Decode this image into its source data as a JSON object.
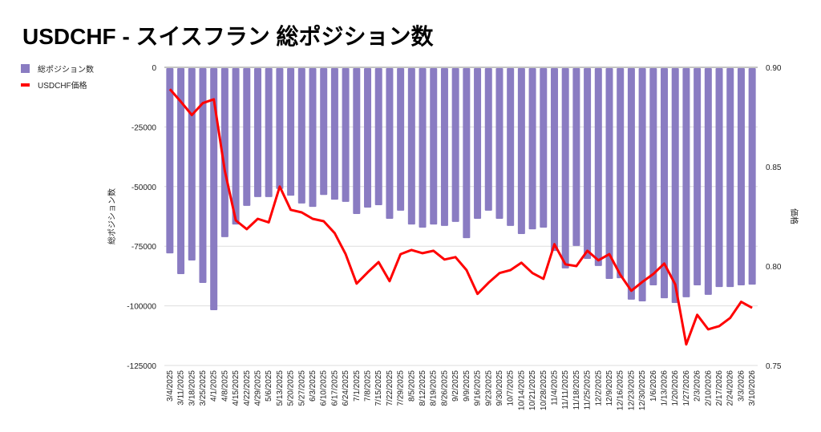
{
  "chart_data": {
    "type": "bar+line",
    "title": "USDCHF - スイスフラン 総ポジション数",
    "legend_position": "top-left",
    "grid": true,
    "left_axis": {
      "label": "総ポジション数",
      "range": [
        -125000,
        0
      ],
      "ticks": [
        0,
        -25000,
        -50000,
        -75000,
        -100000,
        -125000
      ]
    },
    "right_axis": {
      "label": "価格",
      "range": [
        0.75,
        0.9
      ],
      "ticks": [
        "0.90",
        "0.85",
        "0.80",
        "0.75"
      ]
    },
    "categories": [
      "3/4/2025",
      "3/11/2025",
      "3/18/2025",
      "3/25/2025",
      "4/1/2025",
      "4/8/2025",
      "4/15/2025",
      "4/22/2025",
      "4/29/2025",
      "5/6/2025",
      "5/13/2025",
      "5/20/2025",
      "5/27/2025",
      "6/3/2025",
      "6/10/2025",
      "6/17/2025",
      "6/24/2025",
      "7/1/2025",
      "7/8/2025",
      "7/15/2025",
      "7/22/2025",
      "7/29/2025",
      "8/5/2025",
      "8/12/2025",
      "8/19/2025",
      "8/26/2025",
      "9/2/2025",
      "9/9/2025",
      "9/16/2025",
      "9/23/2025",
      "9/30/2025",
      "10/7/2025",
      "10/14/2025",
      "10/21/2025",
      "10/28/2025",
      "11/4/2025",
      "11/11/2025",
      "11/18/2025",
      "11/25/2025",
      "12/2/2025",
      "12/9/2025",
      "12/16/2025",
      "12/23/2025",
      "12/30/2025",
      "1/6/2026",
      "1/13/2026",
      "1/20/2026",
      "1/27/2026",
      "2/3/2026",
      "2/10/2026",
      "2/17/2026",
      "2/24/2026",
      "3/3/2026",
      "3/10/2026"
    ],
    "series": [
      {
        "name": "総ポジション数",
        "type": "bar",
        "axis": "left",
        "color": "#8a7cc2",
        "values": [
          -78000,
          -86700,
          -81000,
          -90400,
          -101800,
          -71200,
          -65900,
          -58100,
          -54400,
          -54400,
          -51000,
          -53800,
          -57100,
          -58500,
          -53500,
          -55500,
          -56400,
          -61500,
          -58800,
          -57800,
          -63500,
          -60100,
          -65900,
          -67200,
          -65900,
          -66500,
          -64800,
          -71600,
          -63500,
          -60100,
          -63500,
          -66500,
          -69900,
          -67900,
          -67200,
          -77000,
          -84300,
          -74900,
          -80300,
          -83300,
          -88700,
          -88400,
          -97400,
          -98100,
          -91400,
          -96800,
          -98800,
          -96400,
          -91400,
          -95400,
          -92100,
          -92100,
          -91400,
          -91100
        ]
      },
      {
        "name": "USDCHF価格",
        "type": "line",
        "axis": "right",
        "color": "#ff0000",
        "values": [
          0.889,
          0.8827,
          0.876,
          0.882,
          0.8839,
          0.848,
          0.823,
          0.8186,
          0.8238,
          0.822,
          0.84,
          0.8283,
          0.827,
          0.8238,
          0.8226,
          0.8166,
          0.806,
          0.7912,
          0.7968,
          0.802,
          0.7924,
          0.806,
          0.8081,
          0.8065,
          0.8077,
          0.8033,
          0.8045,
          0.798,
          0.786,
          0.7916,
          0.7965,
          0.798,
          0.8017,
          0.7965,
          0.7936,
          0.811,
          0.8009,
          0.8,
          0.8077,
          0.8029,
          0.806,
          0.7956,
          0.7876,
          0.792,
          0.796,
          0.8013,
          0.7908,
          0.7606,
          0.7755,
          0.7682,
          0.7698,
          0.7739,
          0.782,
          0.779
        ]
      }
    ]
  }
}
